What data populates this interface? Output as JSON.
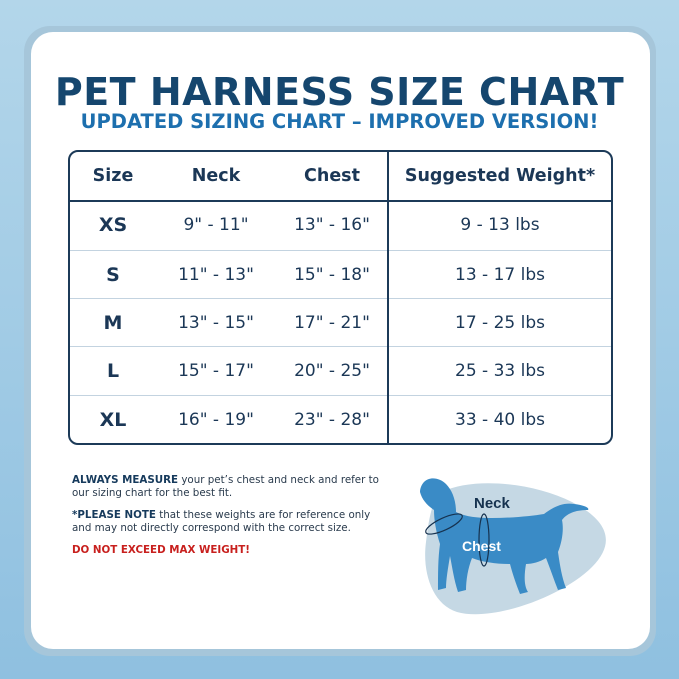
{
  "title": "PET HARNESS SIZE CHART",
  "subtitle": "UPDATED SIZING CHART – IMPROVED VERSION!",
  "table": {
    "headers": [
      "Size",
      "Neck",
      "Chest",
      "Suggested Weight*"
    ],
    "rows": [
      [
        "XS",
        "9\" - 11\"",
        "13\" - 16\"",
        "9 - 13 lbs"
      ],
      [
        "S",
        "11\" - 13\"",
        "15\" - 18\"",
        "13 - 17 lbs"
      ],
      [
        "M",
        "13\" - 15\"",
        "17\" - 21\"",
        "17 - 25  lbs"
      ],
      [
        "L",
        "15\" - 17\"",
        "20\" - 25\"",
        "25 - 33 lbs"
      ],
      [
        "XL",
        "16\" - 19\"",
        "23\" - 28\"",
        "33 - 40 lbs"
      ]
    ]
  },
  "notes": {
    "measure_bold": "ALWAYS MEASURE",
    "measure_text": " your pet’s chest and neck and refer to our sizing chart for the best fit.",
    "note_bold": "*PLEASE NOTE",
    "note_text": " that these weights are for reference only and may not directly correspond with the correct size.",
    "warning": "DO NOT EXCEED MAX WEIGHT!"
  },
  "diagram": {
    "neck_label": "Neck",
    "chest_label": "Chest",
    "icon": "dog-silhouette-icon"
  },
  "colors": {
    "title": "#15466e",
    "subtitle": "#1d6fae",
    "warning": "#c8201e",
    "dog": "#3a8bc6",
    "blob": "#c5d8e4"
  }
}
